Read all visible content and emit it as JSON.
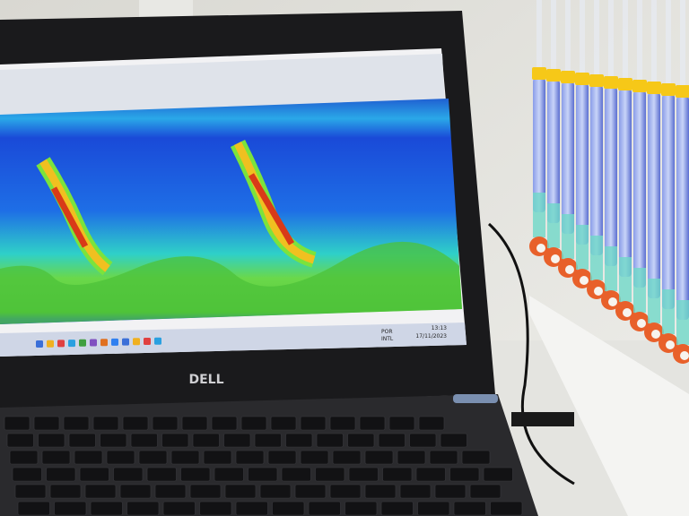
{
  "screen": {
    "taskbar": {
      "language": "POR",
      "layout": "INTL",
      "time": "13:13",
      "date": "17/11/2023"
    }
  },
  "laptop": {
    "brand": "DELL"
  }
}
